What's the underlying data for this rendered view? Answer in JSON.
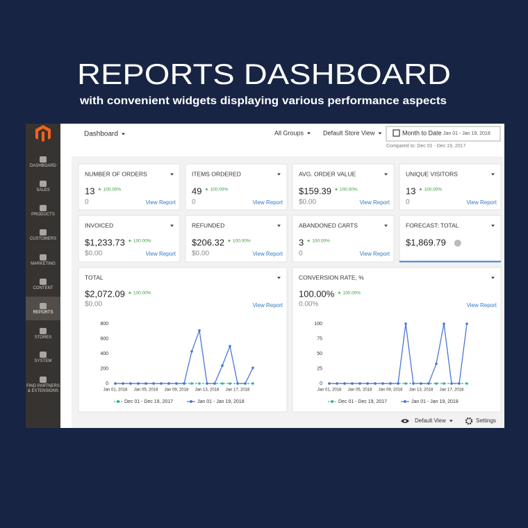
{
  "header": {
    "title": "REPORTS DASHBOARD",
    "subtitle": "with convenient widgets displaying various performance aspects"
  },
  "sidebar": {
    "items": [
      "DASHBOARD",
      "SALES",
      "PRODUCTS",
      "CUSTOMERS",
      "MARKETING",
      "CONTENT",
      "REPORTS",
      "STORES",
      "SYSTEM",
      "FIND PARTNERS & EXTENSIONS"
    ]
  },
  "toolbar": {
    "page": "Dashboard",
    "group": "All Groups",
    "store": "Default Store View",
    "period": "Month to Date",
    "range": "Jan 01 - Jan 19, 2018",
    "compared": "Compared to: Dec 01 - Dec 19, 2017"
  },
  "widgets": [
    {
      "title": "NUMBER OF ORDERS",
      "value": "13",
      "change": "100.00%",
      "previous": "0",
      "link": "View Report"
    },
    {
      "title": "ITEMS ORDERED",
      "value": "49",
      "change": "100.00%",
      "previous": "0",
      "link": "View Report"
    },
    {
      "title": "AVG. ORDER VALUE",
      "value": "$159.39",
      "change": "100.00%",
      "previous": "$0.00",
      "link": "View Report"
    },
    {
      "title": "UNIQUE VISITORS",
      "value": "13",
      "change": "100.00%",
      "previous": "0",
      "link": "View Report"
    },
    {
      "title": "INVOICED",
      "value": "$1,233.73",
      "change": "100.00%",
      "previous": "$0.00",
      "link": "View Report"
    },
    {
      "title": "REFUNDED",
      "value": "$206.32",
      "change": "100.00%",
      "previous": "$0.00",
      "link": "View Report"
    },
    {
      "title": "ABANDONED CARTS",
      "value": "3",
      "change": "100.00%",
      "previous": "0",
      "link": "View Report"
    },
    {
      "title": "FORECAST: TOTAL",
      "value": "$1,869.79"
    }
  ],
  "charts": [
    {
      "type": "line",
      "title": "TOTAL",
      "value": "$2,072.09",
      "change": "100.00%",
      "previous": "$0.00",
      "link": "View Report",
      "categories": [
        "Jan 01, 2018",
        null,
        null,
        null,
        "Jan 05, 2018",
        null,
        null,
        null,
        "Jan 09, 2018",
        null,
        null,
        null,
        "Jan 13, 2018",
        null,
        null,
        null,
        "Jan 17, 2018",
        null,
        null
      ],
      "ylim": [
        0,
        800
      ],
      "yticks": [
        0,
        200,
        400,
        600,
        800
      ],
      "series": [
        {
          "name": "Dec 01 - Dec 19, 2017",
          "color": "#2bb39a",
          "values": [
            0,
            0,
            0,
            0,
            0,
            0,
            0,
            0,
            0,
            0,
            0,
            0,
            0,
            0,
            0,
            0,
            0,
            0,
            0
          ]
        },
        {
          "name": "Jan 01 - Jan 19, 2018",
          "color": "#4a74d6",
          "values": [
            0,
            0,
            0,
            0,
            0,
            0,
            0,
            0,
            0,
            0,
            430,
            710,
            0,
            0,
            240,
            500,
            0,
            0,
            210
          ]
        }
      ]
    },
    {
      "type": "line",
      "title": "CONVERSION RATE, %",
      "value": "100.00%",
      "change": "100.00%",
      "previous": "0.00%",
      "link": "View Report",
      "categories": [
        "Jan 01, 2018",
        null,
        null,
        null,
        "Jan 05, 2018",
        null,
        null,
        null,
        "Jan 09, 2018",
        null,
        null,
        null,
        "Jan 13, 2018",
        null,
        null,
        null,
        "Jan 17, 2018",
        null,
        null
      ],
      "ylim": [
        0,
        100
      ],
      "yticks": [
        0,
        25,
        50,
        75,
        100
      ],
      "series": [
        {
          "name": "Dec 01 - Dec 19, 2017",
          "color": "#2bb39a",
          "values": [
            0,
            0,
            0,
            0,
            0,
            0,
            0,
            0,
            0,
            0,
            0,
            0,
            0,
            0,
            0,
            0,
            0,
            0,
            0
          ]
        },
        {
          "name": "Jan 01 - Jan 19, 2018",
          "color": "#4a74d6",
          "values": [
            0,
            0,
            0,
            0,
            0,
            0,
            0,
            0,
            0,
            0,
            100,
            0,
            0,
            0,
            33,
            100,
            0,
            0,
            100
          ]
        }
      ]
    }
  ],
  "footer": {
    "view": "Default View",
    "settings": "Settings"
  }
}
